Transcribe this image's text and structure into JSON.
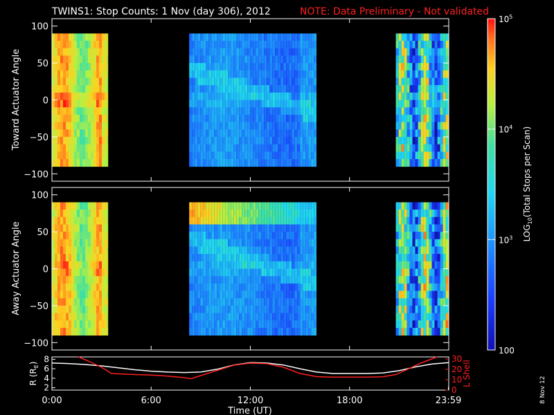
{
  "title": {
    "main": "TWINS1: Stop Counts:  1 Nov (day 306), 2012",
    "note": "NOTE: Data Preliminary - Not validated"
  },
  "stamp": "8 Nov 12",
  "colors": {
    "background": "#000000",
    "axes": "#ffffff",
    "note_text": "#ff2020",
    "r_line": "#ffffff",
    "l_line": "#ff2020"
  },
  "chart_data": [
    {
      "type": "heatmap",
      "name": "toward",
      "ylabel": "Toward Actuator Angle",
      "ylim": [
        -110,
        110
      ],
      "yticks": [
        100,
        50,
        0,
        -50,
        -100
      ],
      "xlim": [
        0,
        24
      ],
      "data_extent_y": [
        -90,
        90
      ],
      "data_blocks_hours": [
        [
          0,
          3.4
        ],
        [
          8.3,
          16.0
        ],
        [
          20.8,
          24
        ]
      ],
      "colorbar_ref": "counts"
    },
    {
      "type": "heatmap",
      "name": "away",
      "ylabel": "Away Actuator Angle",
      "ylim": [
        -110,
        110
      ],
      "yticks": [
        100,
        50,
        0,
        -50,
        -100
      ],
      "xlim": [
        0,
        24
      ],
      "data_extent_y": [
        -90,
        90
      ],
      "data_blocks_hours": [
        [
          0,
          3.4
        ],
        [
          8.3,
          16.0
        ],
        [
          20.8,
          24
        ]
      ],
      "colorbar_ref": "counts"
    },
    {
      "type": "line",
      "name": "orbit",
      "xlabel": "Time (UT)",
      "xlim": [
        0,
        24
      ],
      "xtick_labels": [
        "0:00",
        "6:00",
        "12:00",
        "18:00",
        "23:59"
      ],
      "xtick_hours": [
        0,
        6,
        12,
        18,
        23.98
      ],
      "ylabel_left": "R (R",
      "ylabel_left_sub": "E",
      "ylabel_left_close": ")",
      "ylim_left": [
        1.5,
        8.5
      ],
      "yticks_left": [
        2,
        4,
        6,
        8
      ],
      "ylabel_right": "L Shell",
      "ylim_right": [
        0,
        32
      ],
      "yticks_right": [
        0,
        10,
        20,
        30
      ],
      "series": [
        {
          "axis": "left",
          "color": "#ffffff",
          "x": [
            0,
            1,
            2,
            3,
            4,
            5,
            6,
            7,
            8,
            9,
            10,
            11,
            12,
            13,
            14,
            15,
            16,
            17,
            18,
            19,
            20,
            21,
            22,
            23,
            24
          ],
          "y": [
            7.2,
            7.1,
            6.9,
            6.6,
            6.2,
            5.8,
            5.5,
            5.3,
            5.2,
            5.3,
            5.9,
            6.8,
            7.3,
            7.2,
            6.8,
            6.0,
            5.3,
            5.0,
            5.0,
            5.0,
            5.1,
            5.6,
            6.4,
            7.0,
            7.3
          ]
        },
        {
          "axis": "right",
          "color": "#ff2020",
          "x": [
            1.6,
            2.2,
            3.0,
            3.6,
            5,
            6,
            7,
            8,
            8.4,
            9,
            10,
            11,
            12,
            13,
            14,
            15,
            16,
            17,
            18,
            19,
            20,
            20.8,
            21.5,
            22.3,
            23.3
          ],
          "y": [
            32,
            28,
            22,
            16,
            15,
            14.5,
            13.5,
            12,
            11,
            14,
            19,
            24,
            26,
            25.5,
            22,
            16,
            13,
            12.5,
            12.5,
            12.5,
            12.8,
            15,
            20,
            26,
            32
          ]
        }
      ]
    },
    {
      "type": "colorbar",
      "name": "counts",
      "label": "LOG10(Total Stops per Scan)",
      "label_base": "LOG",
      "label_sub": "10",
      "label_rest": "(Total Stops per Scan)",
      "scale": "log",
      "range": [
        100,
        100000
      ],
      "tick_labels": [
        {
          "base": "10",
          "exp": "5",
          "value": 100000
        },
        {
          "base": "10",
          "exp": "4",
          "value": 10000
        },
        {
          "base": "10",
          "exp": "3",
          "value": 1000
        },
        {
          "base": "100",
          "exp": "",
          "value": 100
        }
      ]
    }
  ]
}
